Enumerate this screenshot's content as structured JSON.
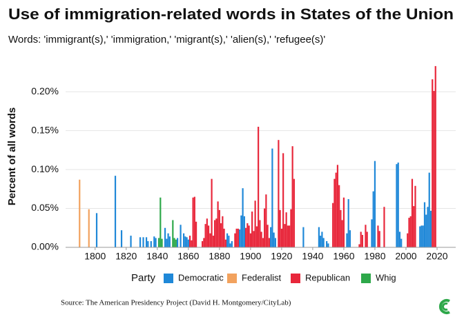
{
  "chart_data": {
    "type": "bar",
    "title": "Use of immigration-related words in States of the Union",
    "subtitle": "Words: 'immigrant(s),' 'immigration,' 'migrant(s),' 'alien(s),' 'refugee(s)'",
    "y_label": "Percent of all words",
    "legend_title": "Party",
    "source": "Source: The American Presidency Project (David H. Montgomery/CityLab)",
    "xlim": [
      1781,
      2032
    ],
    "xticks": [
      1800,
      1820,
      1840,
      1860,
      1880,
      1900,
      1920,
      1940,
      1960,
      1980,
      2000,
      2020
    ],
    "ylim": [
      0,
      0.24
    ],
    "yticks": [
      {
        "value": 0,
        "label": "0.00%"
      },
      {
        "value": 0.05,
        "label": "0.05%"
      },
      {
        "value": 0.1,
        "label": "0.10%"
      },
      {
        "value": 0.15,
        "label": "0.15%"
      },
      {
        "value": 0.2,
        "label": "0.20%"
      }
    ],
    "grid": true,
    "series": [
      {
        "name": "Democratic",
        "color": "#1f88d8",
        "x": [
          1801,
          1813,
          1817,
          1823,
          1829,
          1831,
          1833,
          1834,
          1836,
          1838,
          1839,
          1845,
          1846,
          1847,
          1848,
          1853,
          1855,
          1857,
          1858,
          1859,
          1860,
          1885,
          1886,
          1887,
          1888,
          1893,
          1894,
          1895,
          1896,
          1913,
          1914,
          1915,
          1916,
          1934,
          1944,
          1945,
          1946,
          1947,
          1949,
          1950,
          1962,
          1963,
          1964,
          1978,
          1979,
          1980,
          1994,
          1995,
          1996,
          1997,
          2009,
          2010,
          2011,
          2012,
          2013,
          2014,
          2015,
          2016
        ],
        "values": [
          0.044,
          0.092,
          0.022,
          0.015,
          0.013,
          0.013,
          0.013,
          0.008,
          0.008,
          0.014,
          0.012,
          0.025,
          0.011,
          0.018,
          0.014,
          0.012,
          0.029,
          0.018,
          0.014,
          0.013,
          0.01,
          0.018,
          0.015,
          0.005,
          0.008,
          0.023,
          0.041,
          0.076,
          0.04,
          0.026,
          0.127,
          0.019,
          0.012,
          0.026,
          0.026,
          0.015,
          0.02,
          0.012,
          0.008,
          0.005,
          0.018,
          0.062,
          0.022,
          0.036,
          0.072,
          0.111,
          0.107,
          0.109,
          0.02,
          0.011,
          0.027,
          0.028,
          0.028,
          0.058,
          0.042,
          0.052,
          0.096,
          0.047
        ]
      },
      {
        "name": "Federalist",
        "color": "#f2a25e",
        "x": [
          1790,
          1796
        ],
        "values": [
          0.087,
          0.049
        ]
      },
      {
        "name": "Republican",
        "color": "#e8273b",
        "x": [
          1861,
          1862,
          1863,
          1864,
          1865,
          1869,
          1870,
          1871,
          1872,
          1873,
          1874,
          1875,
          1876,
          1877,
          1878,
          1879,
          1880,
          1881,
          1882,
          1883,
          1884,
          1890,
          1891,
          1892,
          1897,
          1898,
          1899,
          1900,
          1901,
          1902,
          1903,
          1904,
          1905,
          1906,
          1907,
          1908,
          1909,
          1910,
          1911,
          1912,
          1918,
          1919,
          1920,
          1921,
          1922,
          1923,
          1924,
          1925,
          1926,
          1927,
          1928,
          1953,
          1954,
          1955,
          1956,
          1957,
          1958,
          1959,
          1960,
          1970,
          1971,
          1972,
          1974,
          1975,
          1982,
          1983,
          1986,
          2001,
          2002,
          2003,
          2004,
          2005,
          2006,
          2017,
          2018,
          2019
        ],
        "values": [
          0.015,
          0.009,
          0.064,
          0.065,
          0.033,
          0.008,
          0.012,
          0.03,
          0.037,
          0.028,
          0.018,
          0.088,
          0.015,
          0.035,
          0.037,
          0.059,
          0.048,
          0.031,
          0.04,
          0.024,
          0.01,
          0.018,
          0.024,
          0.024,
          0.025,
          0.031,
          0.028,
          0.018,
          0.046,
          0.021,
          0.06,
          0.027,
          0.155,
          0.035,
          0.02,
          0.012,
          0.05,
          0.068,
          0.029,
          0.012,
          0.138,
          0.048,
          0.024,
          0.121,
          0.03,
          0.045,
          0.028,
          0.028,
          0.049,
          0.13,
          0.088,
          0.057,
          0.088,
          0.096,
          0.106,
          0.08,
          0.048,
          0.035,
          0.064,
          0.004,
          0.02,
          0.016,
          0.029,
          0.02,
          0.028,
          0.021,
          0.052,
          0.018,
          0.038,
          0.04,
          0.088,
          0.053,
          0.079,
          0.216,
          0.201,
          0.233
        ]
      },
      {
        "name": "Whig",
        "color": "#2ea84a",
        "x": [
          1841,
          1842,
          1843,
          1850,
          1851,
          1852
        ],
        "values": [
          0.012,
          0.064,
          0.011,
          0.035,
          0.012,
          0.01
        ]
      }
    ]
  }
}
